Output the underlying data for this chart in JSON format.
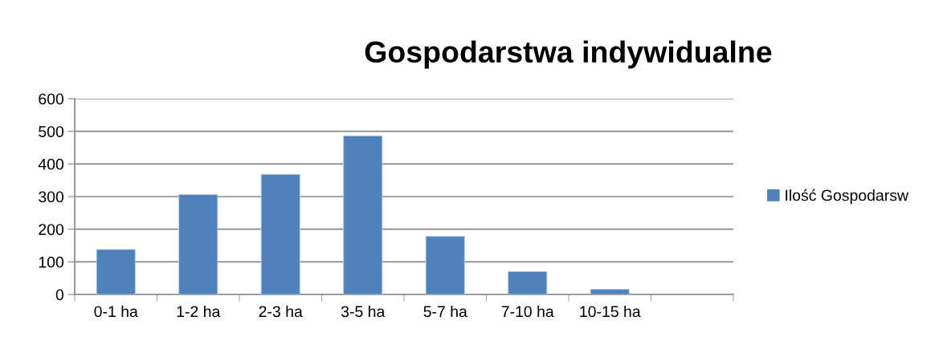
{
  "chart_data": {
    "type": "bar",
    "title": "Gospodarstwa indywidualne",
    "categories": [
      "0-1 ha",
      "1-2 ha",
      "2-3 ha",
      "3-5 ha",
      "5-7 ha",
      "7-10 ha",
      "10-15 ha",
      null
    ],
    "series": [
      {
        "name": "Ilość Gospodarsw",
        "color": "#4f81bd",
        "values": [
          138,
          306,
          368,
          486,
          178,
          70,
          16,
          null
        ]
      }
    ],
    "ylim": [
      0,
      600
    ],
    "yticks": [
      0,
      100,
      200,
      300,
      400,
      500,
      600
    ],
    "grid": "y",
    "legend": "right"
  }
}
